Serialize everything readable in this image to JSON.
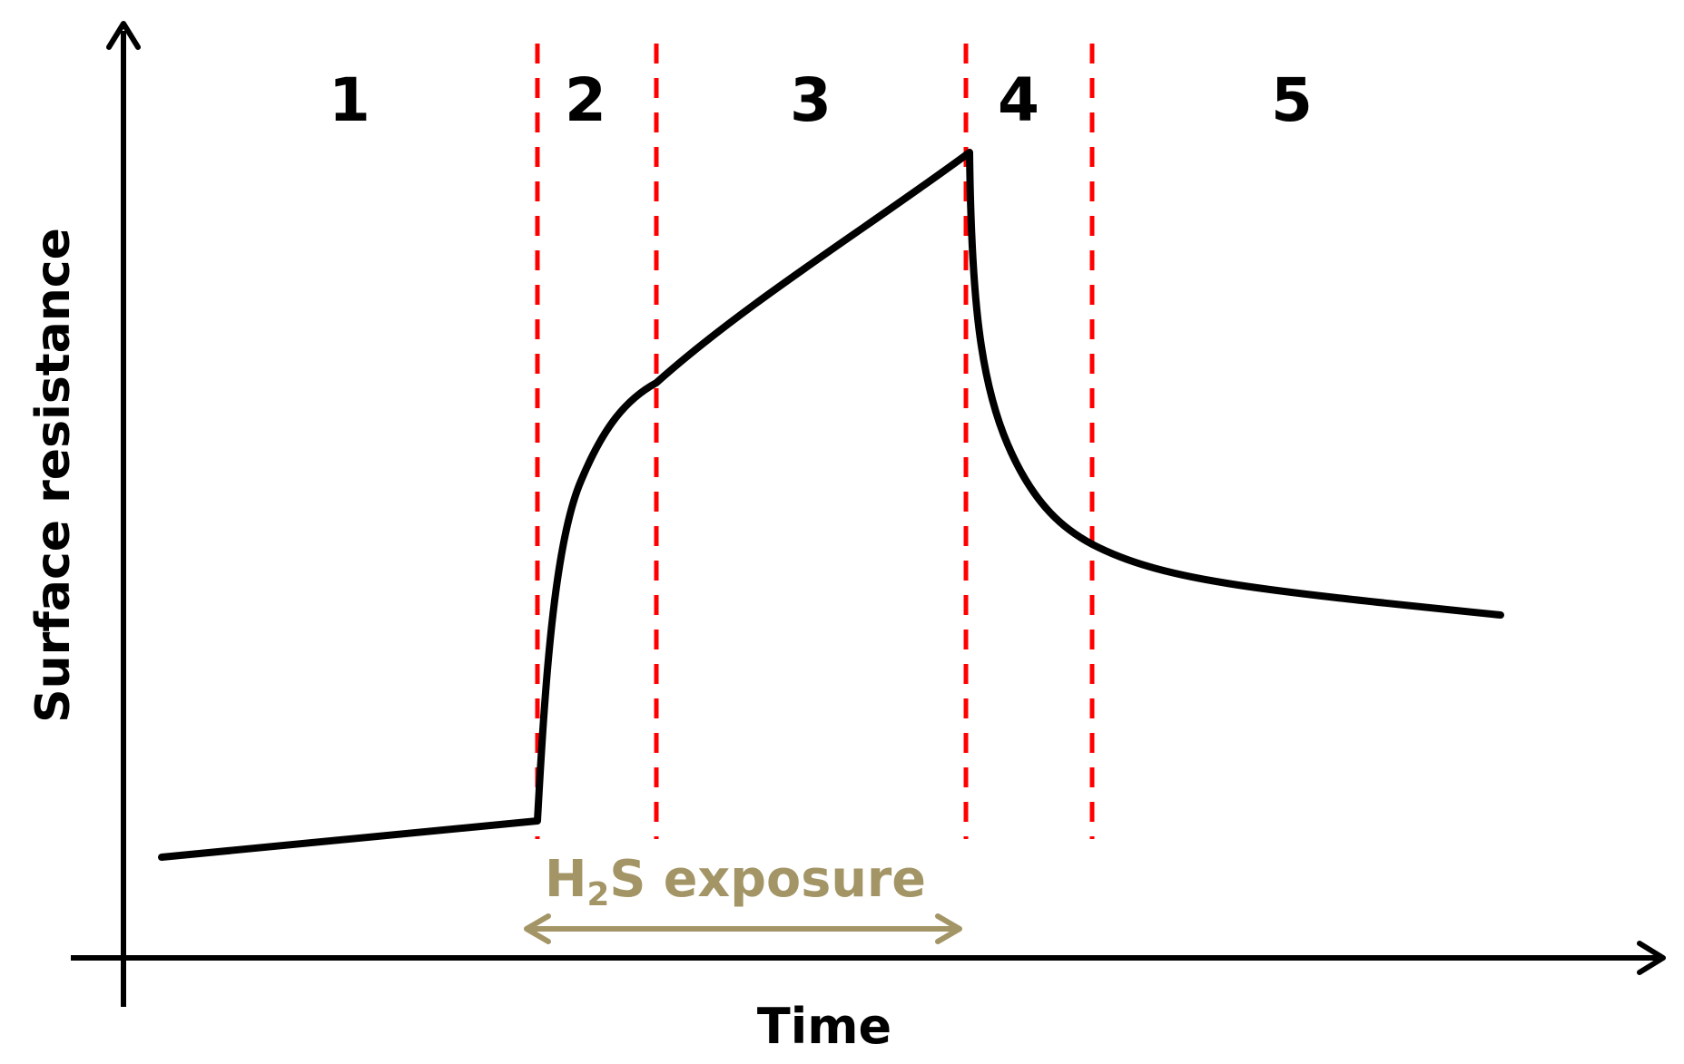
{
  "y_axis_label": "Surface resistance",
  "x_axis_label": "Time",
  "stages": [
    "1",
    "2",
    "3",
    "4",
    "5"
  ],
  "exposure_label": {
    "main": "H",
    "subscript": "2",
    "rest": "S exposure"
  },
  "colors": {
    "axis": "#000000",
    "curve": "#000000",
    "stage_divider": "#ff0000",
    "exposure": "#a39566"
  }
}
